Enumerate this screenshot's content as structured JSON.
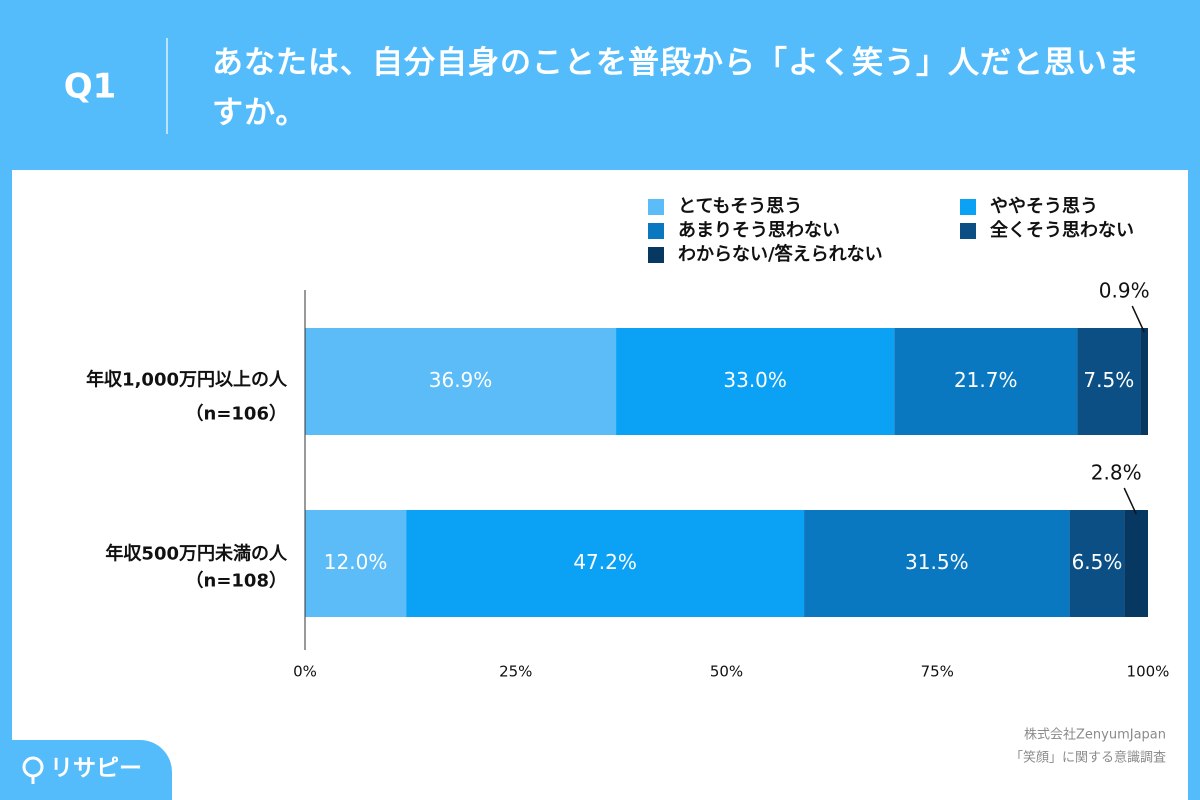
{
  "chart_data": {
    "type": "stacked_barh",
    "question_label": "Q1",
    "title": "あなたは、自分自身のことを普段から「よく笑う」人だと思いますか。",
    "categories": [
      "年収1,000万円以上の人",
      "年収500万円未満の人"
    ],
    "sample_sizes": [
      "（n=106）",
      "（n=108）"
    ],
    "series": [
      {
        "name": "とてもそう思う",
        "color": "#5bbcf8",
        "values": [
          36.9,
          12.0
        ],
        "value_labels": [
          "36.9%",
          "12.0%"
        ]
      },
      {
        "name": "ややそう思う",
        "color": "#0ba2f6",
        "values": [
          33.0,
          47.2
        ],
        "value_labels": [
          "33.0%",
          "47.2%"
        ]
      },
      {
        "name": "あまりそう思わない",
        "color": "#0a78c0",
        "values": [
          21.7,
          31.5
        ],
        "value_labels": [
          "21.7%",
          "31.5%"
        ]
      },
      {
        "name": "全くそう思わない",
        "color": "#0b4f84",
        "values": [
          7.5,
          6.5
        ],
        "value_labels": [
          "7.5%",
          "6.5%"
        ]
      },
      {
        "name": "わからない/答えられない",
        "color": "#073862",
        "values": [
          0.9,
          2.8
        ],
        "value_labels": [
          "0.9%",
          "2.8%"
        ]
      }
    ],
    "xlim": [
      0,
      100
    ],
    "xticks": [
      {
        "value": 0,
        "label": "0%"
      },
      {
        "value": 25,
        "label": "25%"
      },
      {
        "value": 50,
        "label": "50%"
      },
      {
        "value": 75,
        "label": "75%"
      },
      {
        "value": 100,
        "label": "100%"
      }
    ],
    "legend": "top-right",
    "source": [
      "株式会社ZenyumJapan",
      "「笑顔」に関する意識調査"
    ],
    "logo": "リサピー"
  }
}
